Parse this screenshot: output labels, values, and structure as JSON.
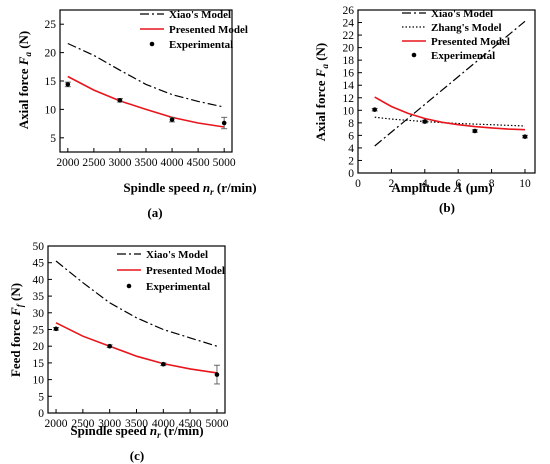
{
  "chart_data": [
    {
      "type": "line",
      "caption": "(a)",
      "xlabel": "Spindle speed",
      "xlabel_sym": "n",
      "xlabel_sub": "r",
      "xlabel_unit": "(r/min)",
      "ylabel": "Axial force",
      "ylabel_sym": "F",
      "ylabel_sub": "a",
      "ylabel_unit": "(N)",
      "xlim": [
        1850,
        5150
      ],
      "ylim": [
        2.5,
        27.5
      ],
      "xticks": [
        2000,
        2500,
        3000,
        3500,
        4000,
        4500,
        5000
      ],
      "yticks": [
        5,
        10,
        15,
        20,
        25
      ],
      "legend": [
        "Xiao's Model",
        "Presented Model",
        "Experimental"
      ],
      "series": [
        {
          "name": "Xiao's Model",
          "style": "dashdot",
          "color": "#000000",
          "x": [
            2000,
            2500,
            3000,
            3500,
            4000,
            4500,
            5000
          ],
          "y": [
            21.6,
            19.5,
            16.9,
            14.4,
            12.6,
            11.4,
            10.4
          ]
        },
        {
          "name": "Presented Model",
          "style": "solid",
          "color": "#e8151c",
          "x": [
            2000,
            2500,
            3000,
            3500,
            4000,
            4500,
            5000
          ],
          "y": [
            15.8,
            13.4,
            11.5,
            10.0,
            8.6,
            7.6,
            6.9
          ]
        },
        {
          "name": "Experimental",
          "style": "points",
          "color": "#000000",
          "x": [
            2000,
            3000,
            4000,
            5000
          ],
          "y": [
            14.4,
            11.6,
            8.2,
            7.6
          ],
          "err": [
            0.4,
            0.3,
            0.4,
            1.0
          ]
        }
      ]
    },
    {
      "type": "line",
      "caption": "(b)",
      "xlabel": "Amplitude",
      "xlabel_sym": "A",
      "xlabel_sub": "",
      "xlabel_unit": "(μm)",
      "ylabel": "Axial force",
      "ylabel_sym": "F",
      "ylabel_sub": "a",
      "ylabel_unit": "(N)",
      "xlim": [
        0,
        10.6
      ],
      "ylim": [
        0,
        26
      ],
      "xticks": [
        0,
        2,
        4,
        6,
        8,
        10
      ],
      "yticks": [
        0,
        2,
        4,
        6,
        8,
        10,
        12,
        14,
        16,
        18,
        20,
        22,
        24,
        26
      ],
      "legend": [
        "Xiao's Model",
        "Zhang's Model",
        "Presented Model",
        "Experimental"
      ],
      "series": [
        {
          "name": "Xiao's Model",
          "style": "dashdot",
          "color": "#000000",
          "x": [
            1,
            10
          ],
          "y": [
            4.3,
            24.2
          ]
        },
        {
          "name": "Zhang's Model",
          "style": "dotted",
          "color": "#000000",
          "x": [
            1,
            2,
            4,
            6,
            8,
            10
          ],
          "y": [
            8.9,
            8.6,
            8.2,
            7.9,
            7.7,
            7.5
          ]
        },
        {
          "name": "Presented Model",
          "style": "solid",
          "color": "#e8151c",
          "x": [
            1,
            2,
            3,
            4,
            5,
            6,
            7,
            8,
            9,
            10
          ],
          "y": [
            12.1,
            10.6,
            9.5,
            8.7,
            8.1,
            7.7,
            7.4,
            7.2,
            7.0,
            6.9
          ]
        },
        {
          "name": "Experimental",
          "style": "points",
          "color": "#000000",
          "x": [
            1,
            4,
            7,
            10
          ],
          "y": [
            10.1,
            8.2,
            6.7,
            5.8
          ],
          "err": [
            0.2,
            0.2,
            0.2,
            0.2
          ]
        }
      ]
    },
    {
      "type": "line",
      "caption": "(c)",
      "xlabel": "Spindle speed",
      "xlabel_sym": "n",
      "xlabel_sub": "r",
      "xlabel_unit": "(r/min)",
      "ylabel": "Feed  force",
      "ylabel_sym": "F",
      "ylabel_sub": "f",
      "ylabel_unit": "(N)",
      "xlim": [
        1850,
        5150
      ],
      "ylim": [
        0,
        50
      ],
      "xticks": [
        2000,
        2500,
        3000,
        3500,
        4000,
        4500,
        5000
      ],
      "yticks": [
        0,
        5,
        10,
        15,
        20,
        25,
        30,
        35,
        40,
        45,
        50
      ],
      "legend": [
        "Xiao's Model",
        "Presented Model",
        "Experimental"
      ],
      "series": [
        {
          "name": "Xiao's Model",
          "style": "dashdot",
          "color": "#000000",
          "x": [
            2000,
            2500,
            3000,
            3500,
            4000,
            4500,
            5000
          ],
          "y": [
            45.5,
            39.0,
            33.0,
            28.5,
            25.0,
            22.5,
            20.0
          ]
        },
        {
          "name": "Presented Model",
          "style": "solid",
          "color": "#e8151c",
          "x": [
            2000,
            2500,
            3000,
            3500,
            4000,
            4500,
            5000
          ],
          "y": [
            27.0,
            23.0,
            20.0,
            17.0,
            14.8,
            13.2,
            12.0
          ]
        },
        {
          "name": "Experimental",
          "style": "points",
          "color": "#000000",
          "x": [
            2000,
            3000,
            4000,
            5000
          ],
          "y": [
            25.2,
            20.0,
            14.6,
            11.5
          ],
          "err": [
            0.4,
            0.4,
            0.4,
            2.8
          ]
        }
      ]
    }
  ]
}
